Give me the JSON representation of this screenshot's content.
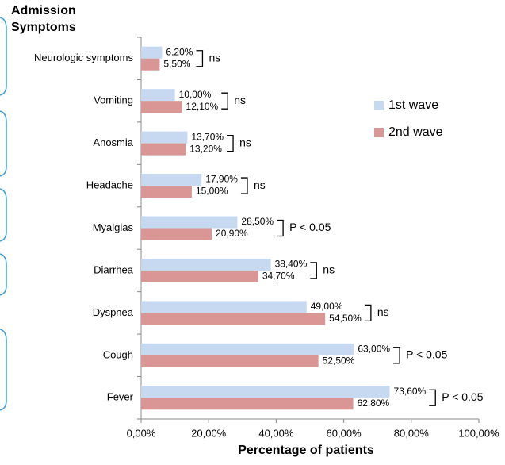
{
  "chart_data": {
    "type": "hbar",
    "title_lines": [
      "Admission",
      "Symptoms"
    ],
    "x_label": "Percentage of patients",
    "categories": [
      "Neurologic symptoms",
      "Vomiting",
      "Anosmia",
      "Headache",
      "Myalgias",
      "Diarrhea",
      "Dyspnea",
      "Cough",
      "Fever"
    ],
    "series": [
      {
        "name": "1st wave",
        "color": "#c6d9f1",
        "values": [
          6.2,
          10.0,
          13.7,
          17.9,
          28.5,
          38.4,
          49.0,
          63.0,
          73.6
        ],
        "value_labels": [
          "6,20%",
          "10,00%",
          "13,70%",
          "17,90%",
          "28,50%",
          "38,40%",
          "49,00%",
          "63,00%",
          "73,60%"
        ]
      },
      {
        "name": "2nd wave",
        "color": "#d99694",
        "values": [
          5.5,
          12.1,
          13.2,
          15.0,
          20.9,
          34.7,
          54.5,
          52.5,
          62.8
        ],
        "value_labels": [
          "5,50%",
          "12,10%",
          "13,20%",
          "15,00%",
          "20,90%",
          "34,70%",
          "54,50%",
          "52,50%",
          "62,80%"
        ]
      }
    ],
    "annotations": [
      "ns",
      "ns",
      "ns",
      "ns",
      "P < 0.05",
      "ns",
      "ns",
      "P < 0.05",
      "P < 0.05"
    ],
    "xlim": [
      0,
      100
    ],
    "xticks": [
      {
        "value": 0,
        "label": "0,00%"
      },
      {
        "value": 20,
        "label": "20,00%"
      },
      {
        "value": 40,
        "label": "40,00%"
      },
      {
        "value": 60,
        "label": "60,00%"
      },
      {
        "value": 80,
        "label": "80,00%"
      },
      {
        "value": 100,
        "label": "100,00%"
      }
    ],
    "grid": false
  }
}
